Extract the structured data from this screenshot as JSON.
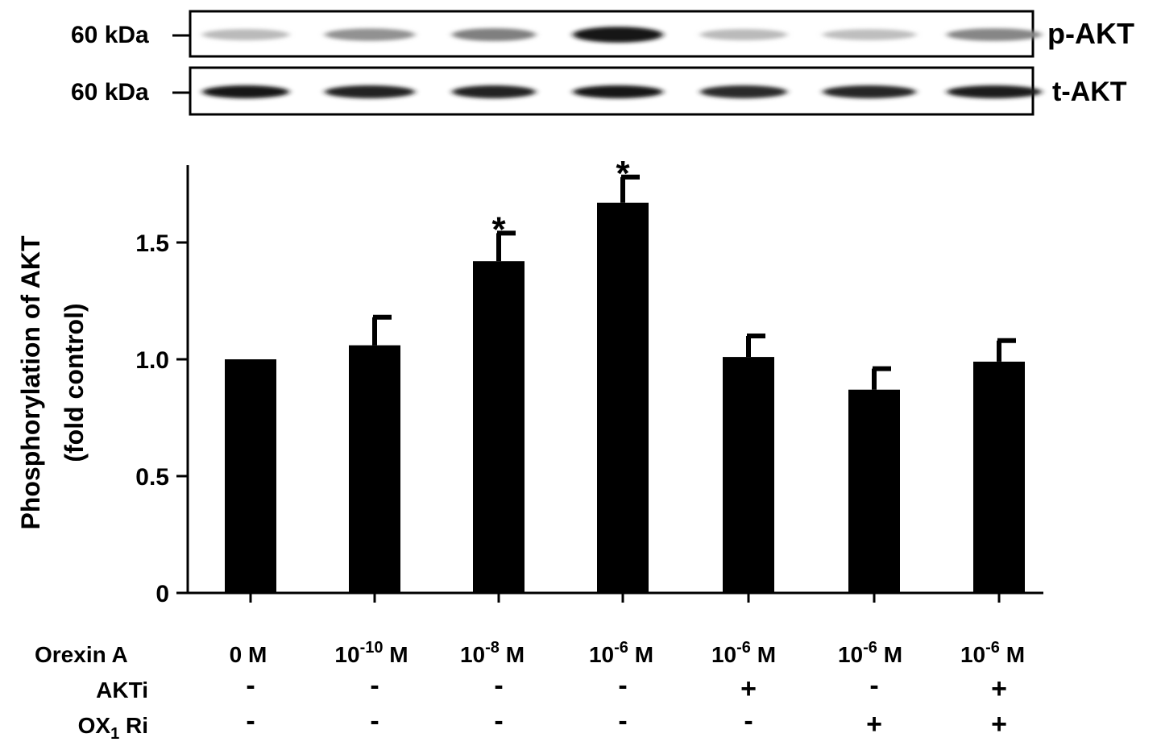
{
  "blot": {
    "rows": [
      {
        "kda_label": "60 kDa",
        "name": "p-AKT",
        "intensities": [
          0.22,
          0.4,
          0.48,
          0.95,
          0.22,
          0.2,
          0.45
        ]
      },
      {
        "kda_label": "60 kDa",
        "name": "t-AKT",
        "intensities": [
          0.95,
          0.9,
          0.9,
          0.95,
          0.85,
          0.88,
          0.92
        ]
      }
    ]
  },
  "chart_data": {
    "type": "bar",
    "ylabel": "Phosphorylation of AKT",
    "ylabel_line2": "(fold control)",
    "ylim": [
      0,
      1.8
    ],
    "yticks": [
      {
        "value": 0,
        "label": "0"
      },
      {
        "value": 0.5,
        "label": "0.5"
      },
      {
        "value": 1.0,
        "label": "1.0"
      },
      {
        "value": 1.5,
        "label": "1.5"
      }
    ],
    "values": [
      1.0,
      1.06,
      1.42,
      1.67,
      1.01,
      0.87,
      0.99
    ],
    "errors": [
      0.0,
      0.12,
      0.12,
      0.11,
      0.09,
      0.09,
      0.09
    ],
    "significant": [
      false,
      false,
      true,
      true,
      false,
      false,
      false
    ],
    "significance_marker": "*",
    "bar_color": "#000000",
    "grid": false,
    "conditions": [
      {
        "name": "Orexin A",
        "values": [
          {
            "base": "0 M",
            "exp": "",
            "unit": ""
          },
          {
            "base": "10",
            "exp": "-10",
            "unit": " M"
          },
          {
            "base": "10",
            "exp": "-8",
            "unit": " M"
          },
          {
            "base": "10",
            "exp": "-6",
            "unit": " M"
          },
          {
            "base": "10",
            "exp": "-6",
            "unit": " M"
          },
          {
            "base": "10",
            "exp": "-6",
            "unit": " M"
          },
          {
            "base": "10",
            "exp": "-6",
            "unit": " M"
          }
        ]
      },
      {
        "name": "AKTi",
        "values": [
          "-",
          "-",
          "-",
          "-",
          "+",
          "-",
          "+"
        ]
      },
      {
        "name_base": "OX",
        "name_sub": "1",
        "name_rest": " Ri",
        "values": [
          "-",
          "-",
          "-",
          "-",
          "-",
          "+",
          "+"
        ]
      }
    ]
  }
}
